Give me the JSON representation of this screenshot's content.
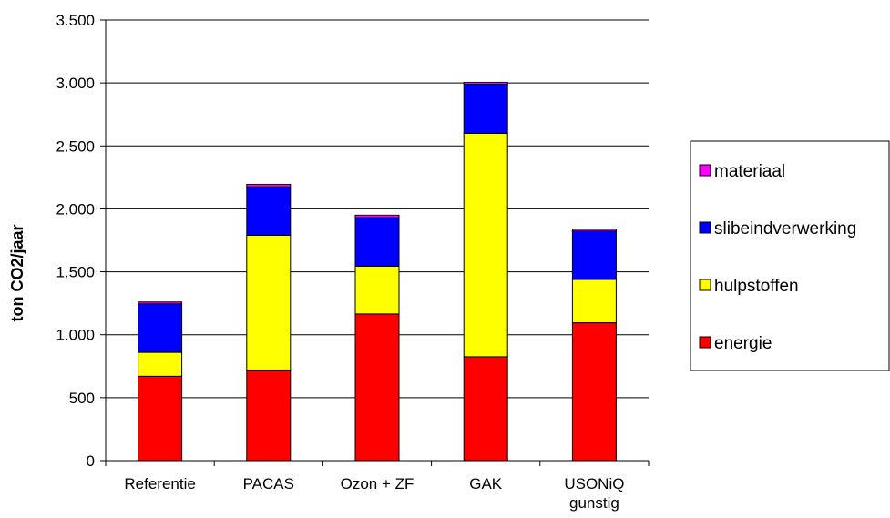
{
  "chart_data": {
    "type": "bar",
    "stacked": true,
    "categories": [
      "Referentie",
      "PACAS",
      "Ozon + ZF",
      "GAK",
      "USONiQ gunstig"
    ],
    "category_lines": [
      [
        "Referentie"
      ],
      [
        "PACAS"
      ],
      [
        "Ozon + ZF"
      ],
      [
        "GAK"
      ],
      [
        "USONiQ",
        "gunstig"
      ]
    ],
    "series": [
      {
        "name": "energie",
        "color": "#ff0000",
        "values": [
          670,
          720,
          1165,
          825,
          1095
        ]
      },
      {
        "name": "hulpstoffen",
        "color": "#ffff00",
        "values": [
          190,
          1070,
          380,
          1775,
          345
        ]
      },
      {
        "name": "slibeindverwerking",
        "color": "#0000ff",
        "values": [
          385,
          385,
          385,
          390,
          385
        ]
      },
      {
        "name": "materiaal",
        "color": "#ff00ff",
        "values": [
          15,
          20,
          20,
          15,
          15
        ]
      }
    ],
    "ylabel": "ton CO2/jaar",
    "xlabel": "",
    "title": "",
    "ylim": [
      0,
      3500
    ],
    "yticks": [
      0,
      500,
      1000,
      1500,
      2000,
      2500,
      3000,
      3500
    ],
    "ytick_labels": [
      "0",
      "500",
      "1.000",
      "1.500",
      "2.000",
      "2.500",
      "3.000",
      "3.500"
    ],
    "legend_order": [
      "materiaal",
      "slibeindverwerking",
      "hulpstoffen",
      "energie"
    ],
    "legend_position": "right",
    "grid": true
  }
}
